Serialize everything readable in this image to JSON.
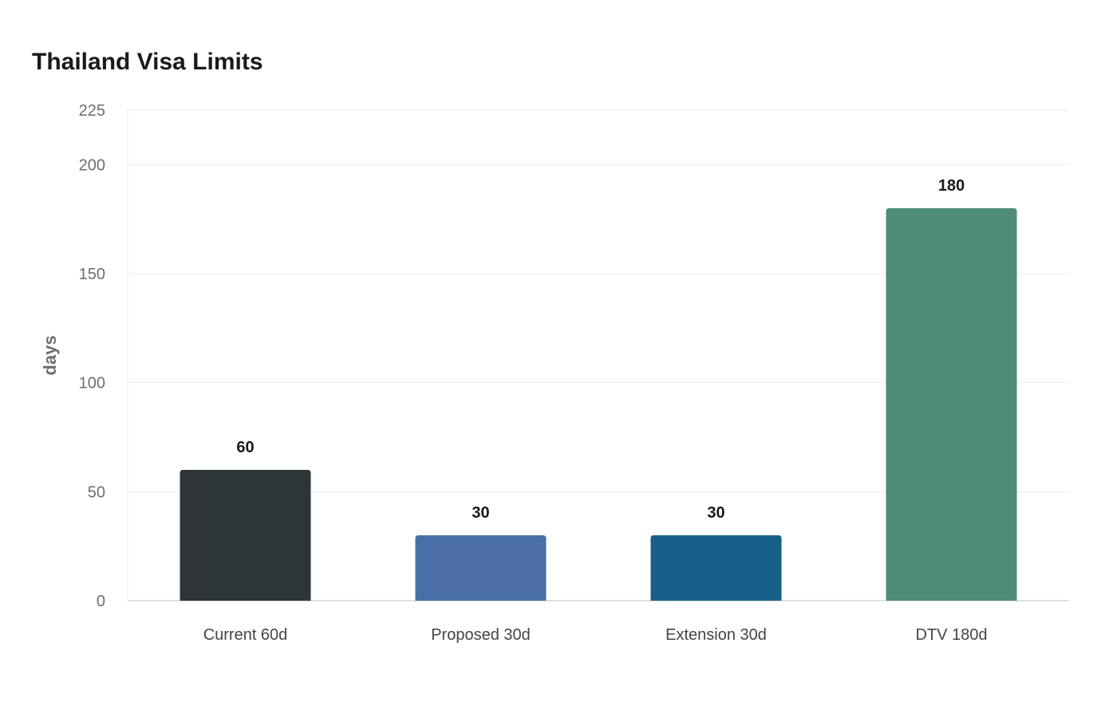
{
  "chart_data": {
    "type": "bar",
    "title": "Thailand Visa Limits",
    "xlabel": "",
    "ylabel": "days",
    "ylim": [
      0,
      225
    ],
    "yticks": [
      0,
      50,
      100,
      150,
      200,
      225
    ],
    "grid": true,
    "categories": [
      "Current 60d",
      "Proposed 30d",
      "Extension 30d",
      "DTV 180d"
    ],
    "values": [
      60,
      30,
      30,
      180
    ],
    "value_labels": [
      "60",
      "30",
      "30",
      "180"
    ],
    "colors": [
      "#2e3538",
      "#4a6fa5",
      "#176089",
      "#4e8c7a"
    ]
  }
}
